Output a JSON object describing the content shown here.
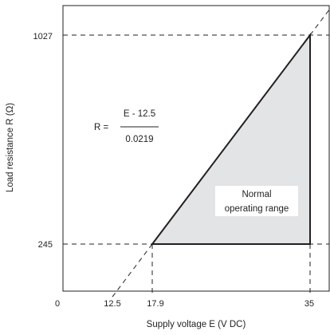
{
  "chart_data": {
    "type": "area",
    "xlabel": "Supply voltage E (V DC)",
    "ylabel": "Load resistance R (Ω)",
    "origin_label": "0",
    "x_ticks": [
      "12.5",
      "17.9",
      "35"
    ],
    "y_ticks": [
      "245",
      "1027"
    ],
    "formula": {
      "lhs": "R =",
      "numerator": "E - 12.5",
      "denominator": "0.0219"
    },
    "region_label": [
      "Normal",
      "operating range"
    ],
    "line": {
      "slope": 45.66,
      "intercept_x": 12.5
    },
    "region_vertices": [
      {
        "x": 17.9,
        "y": 245
      },
      {
        "x": 35,
        "y": 1027
      },
      {
        "x": 35,
        "y": 245
      }
    ],
    "reference_lines": [
      {
        "axis": "y",
        "value": 1027
      },
      {
        "axis": "y",
        "value": 245
      },
      {
        "axis": "x",
        "value": 17.9
      },
      {
        "axis": "x",
        "value": 35
      }
    ],
    "colors": {
      "region_fill": "#e3e4e5",
      "line": "#231f20"
    },
    "grid": false
  }
}
